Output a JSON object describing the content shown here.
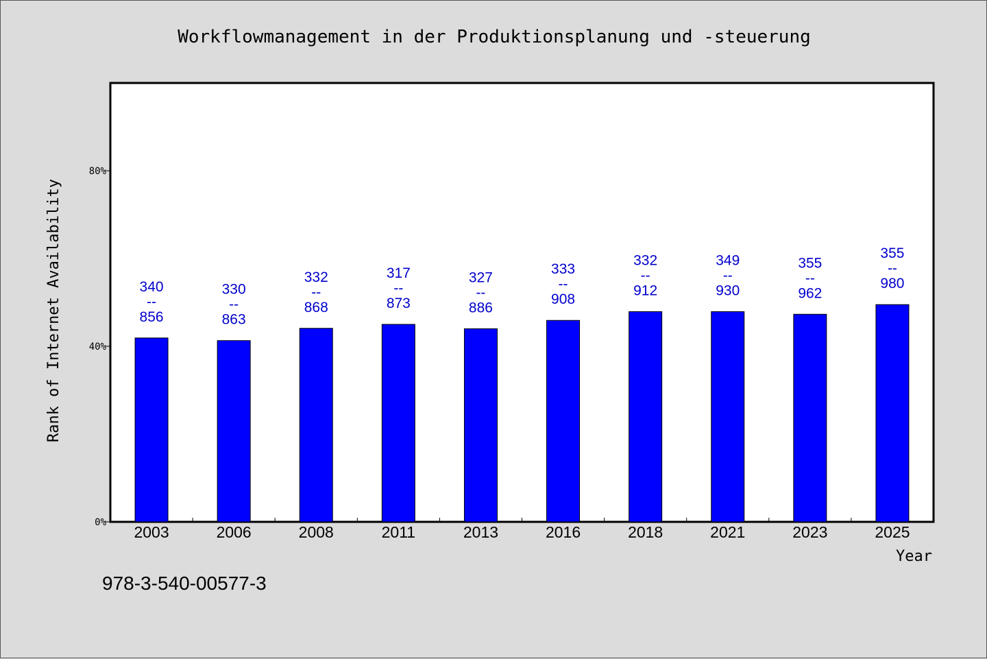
{
  "isbn": "978-3-540-00577-3",
  "chart_data": {
    "type": "bar",
    "title": "Workflowmanagement in der Produktionsplanung und -steuerung",
    "xlabel": "Year",
    "ylabel": "Rank of Internet Availability",
    "ylim": [
      0,
      100
    ],
    "yticks": [
      {
        "value": 0,
        "label": "0%"
      },
      {
        "value": 40,
        "label": "40%"
      },
      {
        "value": 80,
        "label": "80%"
      }
    ],
    "grid": false,
    "categories": [
      "2003",
      "2006",
      "2008",
      "2011",
      "2013",
      "2016",
      "2018",
      "2021",
      "2023",
      "2025"
    ],
    "values": [
      41.9,
      41.3,
      44.1,
      45.0,
      44.0,
      45.9,
      47.9,
      47.9,
      47.3,
      49.5
    ],
    "bar_labels": [
      {
        "top": "340",
        "sep": "--",
        "bottom": "856"
      },
      {
        "top": "330",
        "sep": "--",
        "bottom": "863"
      },
      {
        "top": "332",
        "sep": "--",
        "bottom": "868"
      },
      {
        "top": "317",
        "sep": "--",
        "bottom": "873"
      },
      {
        "top": "327",
        "sep": "--",
        "bottom": "886"
      },
      {
        "top": "333",
        "sep": "--",
        "bottom": "908"
      },
      {
        "top": "332",
        "sep": "--",
        "bottom": "912"
      },
      {
        "top": "349",
        "sep": "--",
        "bottom": "930"
      },
      {
        "top": "355",
        "sep": "--",
        "bottom": "962"
      },
      {
        "top": "355",
        "sep": "--",
        "bottom": "980"
      }
    ],
    "colors": {
      "bar": "#0000ff",
      "label": "#0000cc",
      "background": "#dcdcdc",
      "plot": "#ffffff"
    }
  }
}
